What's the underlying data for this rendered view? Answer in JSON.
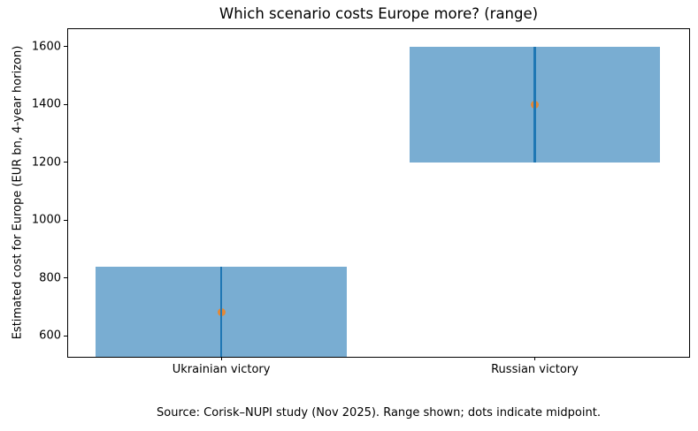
{
  "figure": {
    "title": "Which scenario costs Europe more? (range)",
    "ylabel": "Estimated cost for Europe (EUR bn, 4-year horizon)",
    "source_note": "Source: Corisk–NUPI study (Nov 2025). Range shown; dots indicate midpoint."
  },
  "chart_data": {
    "type": "bar",
    "title": "Which scenario costs Europe more? (range)",
    "xlabel": "",
    "ylabel": "Estimated cost for Europe (EUR bn, 4-year horizon)",
    "categories": [
      "Ukrainian victory",
      "Russian victory"
    ],
    "bars": [
      {
        "category": "Ukrainian victory",
        "range_low": 520,
        "range_high": 840,
        "midpoint": 680
      },
      {
        "category": "Russian victory",
        "range_low": 1200,
        "range_high": 1600,
        "midpoint": 1400
      }
    ],
    "yticks": [
      600,
      800,
      1000,
      1200,
      1400,
      1600
    ],
    "ylim": [
      527,
      1660
    ],
    "grid": false,
    "legend": false,
    "annotation": "Source: Corisk–NUPI study (Nov 2025). Range shown; dots indicate midpoint.",
    "colors": {
      "bar_fill": "#79add2",
      "range_line": "#1f77b4",
      "midpoint_dot": "#e58835",
      "axis": "#000000",
      "text": "#000000",
      "background": "#ffffff"
    },
    "layout": {
      "bar_centers_pct": [
        24.66,
        75.14
      ],
      "bar_width_pct": 40.45
    }
  }
}
